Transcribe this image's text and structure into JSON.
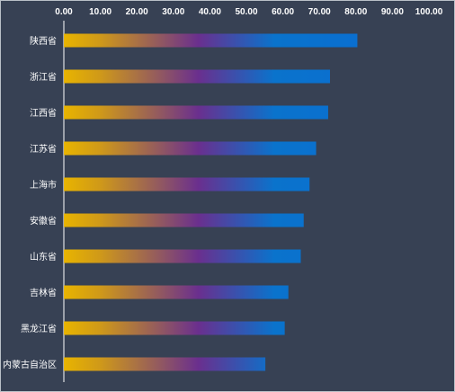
{
  "chart_data": {
    "type": "bar",
    "orientation": "horizontal",
    "title": "",
    "xlabel": "",
    "ylabel": "",
    "xlim": [
      0,
      100
    ],
    "tick_step": 10,
    "x_ticks": [
      "0.00",
      "10.00",
      "20.00",
      "30.00",
      "40.00",
      "50.00",
      "60.00",
      "70.00",
      "80.00",
      "90.00",
      "100.00"
    ],
    "x_axis_position": "top",
    "grid": false,
    "legend": "none",
    "categories": [
      "陕西省",
      "浙江省",
      "江西省",
      "江苏省",
      "上海市",
      "安徽省",
      "山东省",
      "吉林省",
      "黑龙江省",
      "内蒙古自治区"
    ],
    "values": [
      80.4,
      72.9,
      72.4,
      69.1,
      67.3,
      65.7,
      64.9,
      61.5,
      60.5,
      55.2
    ]
  },
  "colors": {
    "background": "#374154",
    "axis": "#ffffff",
    "bar_gradient": [
      "#e8b400",
      "#6a2f8e",
      "#0a73cc",
      "#0a6fd0"
    ]
  }
}
